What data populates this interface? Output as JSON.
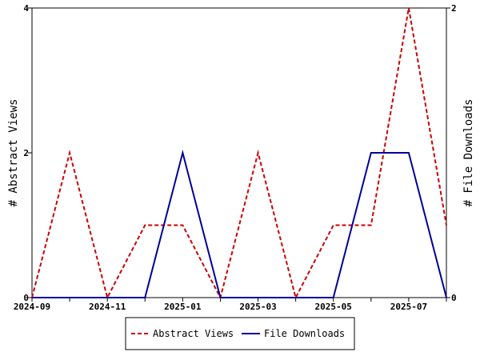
{
  "chart_data": {
    "type": "line",
    "x": [
      "2024-09",
      "2024-10",
      "2024-11",
      "2024-12",
      "2025-01",
      "2025-02",
      "2025-03",
      "2025-04",
      "2025-05",
      "2025-06",
      "2025-07",
      "2025-08"
    ],
    "x_tick_labels": [
      "2024-09",
      "2024-11",
      "2025-01",
      "2025-03",
      "2025-05",
      "2025-07"
    ],
    "ylabel": "# Abstract Views",
    "y2label": "# File Downloads",
    "ylim": [
      0,
      4
    ],
    "y2lim": [
      0,
      2
    ],
    "y_ticks": [
      0,
      2,
      4
    ],
    "y2_ticks": [
      0,
      2
    ],
    "grid": false,
    "legend": "bottom",
    "series": [
      {
        "name": "Abstract Views",
        "axis": "left",
        "color": "#cc0000",
        "style": "dashed",
        "values": [
          0,
          2,
          0,
          1,
          1,
          0,
          2,
          0,
          1,
          1,
          4,
          1
        ]
      },
      {
        "name": "File Downloads",
        "axis": "right",
        "color": "#000099",
        "style": "solid",
        "values": [
          0,
          0,
          0,
          0,
          1,
          0,
          0,
          0,
          0,
          1,
          1,
          0
        ]
      }
    ]
  }
}
